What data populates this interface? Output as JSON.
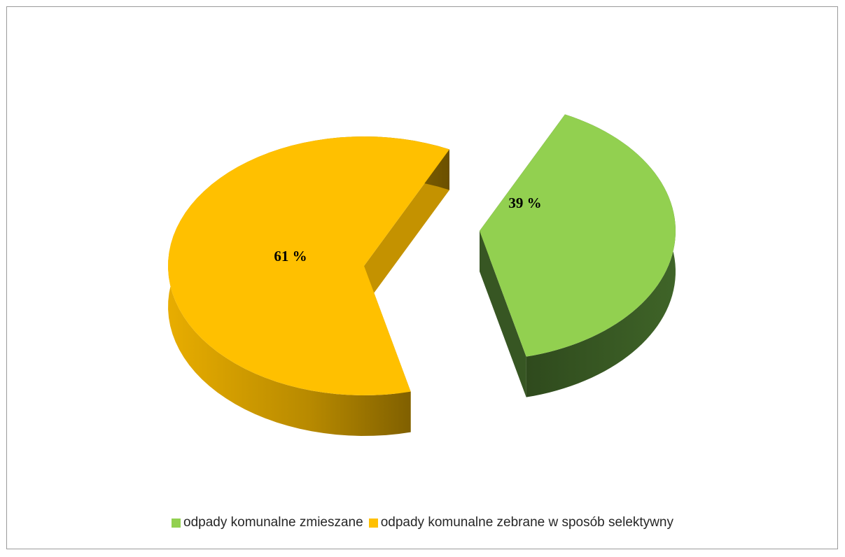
{
  "chart_data": {
    "type": "pie",
    "style": "3d-exploded",
    "categories": [
      "odpady komunalne zmieszane",
      "odpady komunalne zebrane w sposób selektywny"
    ],
    "values": [
      39,
      61
    ],
    "data_labels": [
      "39 %",
      "61 %"
    ],
    "colors": [
      "#92d050",
      "#ffc000"
    ],
    "side_colors": [
      "#375623",
      "#c49200"
    ],
    "legend_position": "bottom",
    "title": ""
  }
}
